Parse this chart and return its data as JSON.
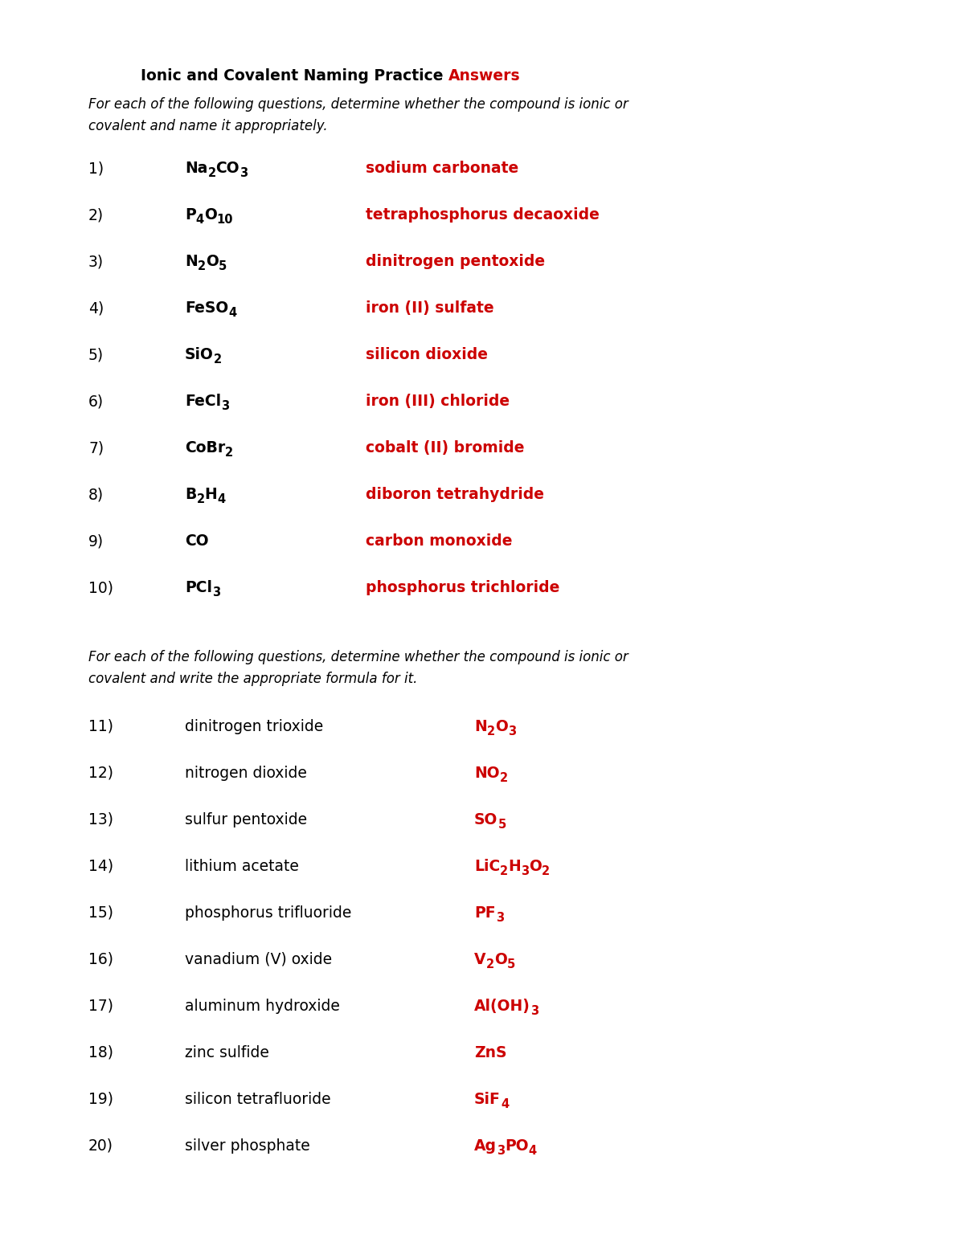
{
  "title_black": "Ionic and Covalent Naming Practice ",
  "title_red": "Answers",
  "subtitle1": "For each of the following questions, determine whether the compound is ionic or",
  "subtitle2": "covalent and name it appropriately.",
  "subtitle3": "For each of the following questions, determine whether the compound is ionic or",
  "subtitle4": "covalent and write the appropriate formula for it.",
  "bg_color": "#ffffff",
  "black": "#000000",
  "red": "#cc0000",
  "part1": [
    {
      "num": "1)",
      "formula_parts": [
        [
          "Na",
          false
        ],
        [
          "2",
          true
        ],
        [
          "CO",
          false
        ],
        [
          "3",
          true
        ]
      ],
      "answer": "sodium carbonate"
    },
    {
      "num": "2)",
      "formula_parts": [
        [
          "P",
          false
        ],
        [
          "4",
          true
        ],
        [
          "O",
          false
        ],
        [
          "10",
          true
        ]
      ],
      "answer": "tetraphosphorus decaoxide"
    },
    {
      "num": "3)",
      "formula_parts": [
        [
          "N",
          false
        ],
        [
          "2",
          true
        ],
        [
          "O",
          false
        ],
        [
          "5",
          true
        ]
      ],
      "answer": "dinitrogen pentoxide"
    },
    {
      "num": "4)",
      "formula_parts": [
        [
          "FeSO",
          false
        ],
        [
          "4",
          true
        ]
      ],
      "answer": "iron (II) sulfate"
    },
    {
      "num": "5)",
      "formula_parts": [
        [
          "SiO",
          false
        ],
        [
          "2",
          true
        ]
      ],
      "answer": "silicon dioxide"
    },
    {
      "num": "6)",
      "formula_parts": [
        [
          "FeCl",
          false
        ],
        [
          "3",
          true
        ]
      ],
      "answer": "iron (III) chloride"
    },
    {
      "num": "7)",
      "formula_parts": [
        [
          "CoBr",
          false
        ],
        [
          "2",
          true
        ]
      ],
      "answer": "cobalt (II) bromide"
    },
    {
      "num": "8)",
      "formula_parts": [
        [
          "B",
          false
        ],
        [
          "2",
          true
        ],
        [
          "H",
          false
        ],
        [
          "4",
          true
        ]
      ],
      "answer": "diboron tetrahydride"
    },
    {
      "num": "9)",
      "formula_parts": [
        [
          "CO",
          false
        ]
      ],
      "answer": "carbon monoxide"
    },
    {
      "num": "10)",
      "formula_parts": [
        [
          "PCl",
          false
        ],
        [
          "3",
          true
        ]
      ],
      "answer": "phosphorus trichloride"
    }
  ],
  "part2": [
    {
      "num": "11)",
      "name": "dinitrogen trioxide",
      "formula_parts": [
        [
          "N",
          false
        ],
        [
          "2",
          true
        ],
        [
          "O",
          false
        ],
        [
          "3",
          true
        ]
      ]
    },
    {
      "num": "12)",
      "name": "nitrogen dioxide",
      "formula_parts": [
        [
          "NO",
          false
        ],
        [
          "2",
          true
        ]
      ]
    },
    {
      "num": "13)",
      "name": "sulfur pentoxide",
      "formula_parts": [
        [
          "SO",
          false
        ],
        [
          "5",
          true
        ]
      ]
    },
    {
      "num": "14)",
      "name": "lithium acetate",
      "formula_parts": [
        [
          "LiC",
          false
        ],
        [
          "2",
          true
        ],
        [
          "H",
          false
        ],
        [
          "3",
          true
        ],
        [
          "O",
          false
        ],
        [
          "2",
          true
        ]
      ]
    },
    {
      "num": "15)",
      "name": "phosphorus trifluoride",
      "formula_parts": [
        [
          "PF",
          false
        ],
        [
          "3",
          true
        ]
      ]
    },
    {
      "num": "16)",
      "name": "vanadium (V) oxide",
      "formula_parts": [
        [
          "V",
          false
        ],
        [
          "2",
          true
        ],
        [
          "O",
          false
        ],
        [
          "5",
          true
        ]
      ]
    },
    {
      "num": "17)",
      "name": "aluminum hydroxide",
      "formula_parts": [
        [
          "Al(OH)",
          false
        ],
        [
          "3",
          true
        ]
      ]
    },
    {
      "num": "18)",
      "name": "zinc sulfide",
      "formula_parts": [
        [
          "ZnS",
          false
        ]
      ]
    },
    {
      "num": "19)",
      "name": "silicon tetrafluoride",
      "formula_parts": [
        [
          "SiF",
          false
        ],
        [
          "4",
          true
        ]
      ]
    },
    {
      "num": "20)",
      "name": "silver phosphate",
      "formula_parts": [
        [
          "Ag",
          false
        ],
        [
          "3",
          true
        ],
        [
          "PO",
          false
        ],
        [
          "4",
          true
        ]
      ]
    }
  ],
  "dpi": 100,
  "figwidth": 11.87,
  "figheight": 15.36
}
